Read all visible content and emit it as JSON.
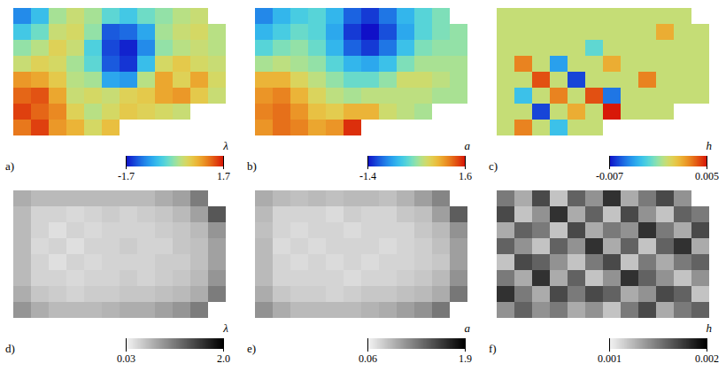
{
  "chart_data": [
    {
      "type": "heatmap",
      "panel": "a)",
      "color": "jet",
      "tick_labels": false,
      "colorbar": {
        "label": "λ",
        "range": [
          -1.7,
          1.7
        ],
        "ticks": [
          -1.7,
          1.7
        ]
      },
      "cells": [
        [
          -1.0,
          -0.6,
          0.1,
          0.3,
          0.1,
          -0.3,
          -0.5,
          -0.2,
          0.0,
          0.2,
          0.3,
          null
        ],
        [
          -0.5,
          -0.2,
          0.3,
          0.4,
          0.0,
          -1.3,
          -1.2,
          -0.8,
          0.1,
          0.3,
          0.4,
          0.2
        ],
        [
          0.0,
          0.2,
          0.5,
          0.3,
          -0.4,
          -1.4,
          -1.6,
          -1.0,
          0.0,
          0.2,
          0.3,
          0.2
        ],
        [
          0.3,
          0.5,
          0.4,
          0.1,
          -0.3,
          -1.3,
          -1.5,
          -0.6,
          0.4,
          0.6,
          0.4,
          0.3
        ],
        [
          1.0,
          0.9,
          0.6,
          0.2,
          0.1,
          -0.8,
          -0.9,
          0.2,
          0.9,
          0.5,
          0.9,
          0.4
        ],
        [
          1.3,
          1.4,
          0.9,
          0.3,
          0.4,
          0.3,
          0.5,
          0.6,
          0.9,
          1.0,
          0.6,
          0.3
        ],
        [
          1.5,
          1.3,
          1.1,
          0.5,
          0.2,
          0.4,
          0.6,
          0.5,
          0.4,
          0.3,
          null,
          null
        ],
        [
          1.2,
          1.5,
          1.0,
          0.8,
          0.4,
          0.7,
          null,
          null,
          null,
          null,
          null,
          null
        ]
      ]
    },
    {
      "type": "heatmap",
      "panel": "b)",
      "color": "jet",
      "tick_labels": false,
      "colorbar": {
        "label": "a",
        "range": [
          -1.4,
          1.6
        ],
        "ticks": [
          -1.4,
          1.6
        ]
      },
      "cells": [
        [
          -0.8,
          -0.5,
          -0.3,
          -0.2,
          -0.5,
          -1.0,
          -1.2,
          -0.9,
          -0.5,
          -0.2,
          0.0,
          null
        ],
        [
          -0.5,
          -0.3,
          -0.1,
          -0.2,
          -0.6,
          -1.2,
          -1.4,
          -1.1,
          -0.6,
          -0.2,
          0.0,
          0.1
        ],
        [
          -0.2,
          0.0,
          0.1,
          -0.1,
          -0.5,
          -1.0,
          -1.2,
          -0.9,
          -0.4,
          0.0,
          0.1,
          0.1
        ],
        [
          0.2,
          0.3,
          0.2,
          0.1,
          -0.2,
          -0.5,
          -0.6,
          -0.4,
          0.0,
          0.2,
          0.2,
          0.2
        ],
        [
          0.8,
          0.8,
          0.5,
          0.3,
          0.1,
          -0.1,
          -0.1,
          0.1,
          0.4,
          0.4,
          0.3,
          0.2
        ],
        [
          1.0,
          1.1,
          0.8,
          0.5,
          0.3,
          0.2,
          0.3,
          0.3,
          0.3,
          0.3,
          0.2,
          0.2
        ],
        [
          1.1,
          1.2,
          1.0,
          0.7,
          0.6,
          0.8,
          0.8,
          0.4,
          0.3,
          0.2,
          null,
          null
        ],
        [
          1.0,
          1.2,
          1.1,
          0.9,
          1.0,
          1.5,
          null,
          null,
          null,
          null,
          null,
          null
        ]
      ]
    },
    {
      "type": "heatmap",
      "panel": "c)",
      "color": "jet",
      "tick_labels": false,
      "colorbar": {
        "label": "h",
        "range": [
          -0.007,
          0.005
        ],
        "ticks": [
          -0.007,
          0.005
        ]
      },
      "cells": [
        [
          0,
          0,
          0,
          0,
          0,
          0,
          0,
          0,
          0,
          0,
          0,
          null
        ],
        [
          0,
          0,
          0,
          0,
          0,
          0,
          0,
          0,
          0,
          0.002,
          0,
          0
        ],
        [
          0,
          0,
          0,
          0,
          0,
          -0.002,
          0,
          0,
          0,
          0,
          0,
          0
        ],
        [
          0,
          0.003,
          0,
          -0.004,
          0,
          0,
          0.002,
          0,
          0,
          0,
          0,
          0
        ],
        [
          0,
          0,
          0.004,
          0,
          -0.006,
          0,
          0,
          0,
          0.003,
          0,
          0,
          0
        ],
        [
          0,
          -0.003,
          0,
          0.003,
          0,
          0.004,
          -0.005,
          0,
          0,
          0,
          0,
          0
        ],
        [
          0,
          0,
          -0.006,
          0,
          0.002,
          0,
          0.005,
          0,
          0,
          0,
          null,
          null
        ],
        [
          0,
          0.003,
          0,
          -0.003,
          0,
          0,
          null,
          null,
          null,
          null,
          null,
          null
        ]
      ]
    },
    {
      "type": "heatmap",
      "panel": "d)",
      "color": "gray",
      "tick_labels": false,
      "colorbar": {
        "label": "λ",
        "range": [
          0.03,
          2.0
        ],
        "ticks": [
          0.03,
          {
            "value": 2.0,
            "label": "2.0"
          }
        ]
      },
      "cells": [
        [
          0.6,
          0.5,
          0.5,
          0.5,
          0.5,
          0.5,
          0.5,
          0.5,
          0.6,
          0.7,
          1.0,
          null
        ],
        [
          0.5,
          0.3,
          0.3,
          0.25,
          0.3,
          0.35,
          0.3,
          0.35,
          0.4,
          0.5,
          0.7,
          1.3
        ],
        [
          0.5,
          0.3,
          0.2,
          0.3,
          0.25,
          0.3,
          0.3,
          0.3,
          0.35,
          0.4,
          0.5,
          0.8
        ],
        [
          0.5,
          0.25,
          0.3,
          0.2,
          0.3,
          0.3,
          0.35,
          0.3,
          0.3,
          0.4,
          0.45,
          0.7
        ],
        [
          0.5,
          0.3,
          0.2,
          0.3,
          0.25,
          0.3,
          0.3,
          0.3,
          0.35,
          0.35,
          0.45,
          0.7
        ],
        [
          0.5,
          0.3,
          0.3,
          0.25,
          0.3,
          0.3,
          0.35,
          0.3,
          0.35,
          0.4,
          0.5,
          0.8
        ],
        [
          0.6,
          0.4,
          0.35,
          0.3,
          0.35,
          0.35,
          0.4,
          0.4,
          0.45,
          0.5,
          0.6,
          1.0
        ],
        [
          0.8,
          0.6,
          0.5,
          0.5,
          0.5,
          0.55,
          0.6,
          0.6,
          0.7,
          0.8,
          1.0,
          null
        ]
      ]
    },
    {
      "type": "heatmap",
      "panel": "e)",
      "color": "gray",
      "tick_labels": false,
      "colorbar": {
        "label": "a",
        "range": [
          0.06,
          1.9
        ],
        "ticks": [
          0.06,
          1.9
        ]
      },
      "cells": [
        [
          0.6,
          0.5,
          0.45,
          0.5,
          0.45,
          0.5,
          0.5,
          0.45,
          0.55,
          0.7,
          0.9,
          null
        ],
        [
          0.5,
          0.3,
          0.3,
          0.3,
          0.25,
          0.35,
          0.3,
          0.3,
          0.4,
          0.45,
          0.7,
          1.2
        ],
        [
          0.45,
          0.3,
          0.25,
          0.3,
          0.3,
          0.25,
          0.3,
          0.3,
          0.3,
          0.4,
          0.5,
          0.8
        ],
        [
          0.5,
          0.25,
          0.3,
          0.25,
          0.3,
          0.3,
          0.3,
          0.25,
          0.3,
          0.35,
          0.45,
          0.7
        ],
        [
          0.5,
          0.3,
          0.25,
          0.3,
          0.25,
          0.3,
          0.25,
          0.3,
          0.3,
          0.35,
          0.4,
          0.7
        ],
        [
          0.5,
          0.3,
          0.3,
          0.3,
          0.3,
          0.25,
          0.3,
          0.3,
          0.35,
          0.4,
          0.5,
          0.8
        ],
        [
          0.6,
          0.4,
          0.35,
          0.35,
          0.3,
          0.35,
          0.4,
          0.4,
          0.45,
          0.5,
          0.6,
          1.0
        ],
        [
          0.8,
          0.6,
          0.5,
          0.5,
          0.5,
          0.5,
          0.55,
          0.6,
          0.7,
          0.8,
          1.0,
          null
        ]
      ]
    },
    {
      "type": "heatmap",
      "panel": "f)",
      "color": "gray",
      "tick_labels": false,
      "colorbar": {
        "label": "h",
        "range": [
          0.001,
          0.002
        ],
        "ticks": [
          0.001,
          0.002
        ]
      },
      "cells": [
        [
          0.0015,
          0.0013,
          0.0017,
          0.0012,
          0.0016,
          0.0014,
          0.0018,
          0.0013,
          0.0015,
          0.0017,
          0.0014,
          null
        ],
        [
          0.0017,
          0.0012,
          0.0014,
          0.0018,
          0.0013,
          0.0016,
          0.0012,
          0.0017,
          0.0014,
          0.0012,
          0.0016,
          0.0015
        ],
        [
          0.0013,
          0.0016,
          0.0015,
          0.0012,
          0.0017,
          0.0013,
          0.0015,
          0.0014,
          0.0018,
          0.0015,
          0.0013,
          0.0017
        ],
        [
          0.0016,
          0.0014,
          0.0012,
          0.0016,
          0.0014,
          0.0018,
          0.0013,
          0.0016,
          0.0012,
          0.0016,
          0.0018,
          0.0013
        ],
        [
          0.0012,
          0.0017,
          0.0016,
          0.0014,
          0.0012,
          0.0015,
          0.0017,
          0.0012,
          0.0015,
          0.0013,
          0.0015,
          0.0016
        ],
        [
          0.0015,
          0.0013,
          0.0018,
          0.0013,
          0.0016,
          0.0012,
          0.0014,
          0.0018,
          0.0016,
          0.0014,
          0.0012,
          0.0014
        ],
        [
          0.0018,
          0.0015,
          0.0013,
          0.0017,
          0.0015,
          0.0017,
          0.0016,
          0.0013,
          0.0014,
          0.0017,
          0.0016,
          0.0012
        ],
        [
          0.0014,
          0.0016,
          0.0014,
          0.0015,
          0.0013,
          0.0014,
          0.0012,
          0.0015,
          0.0017,
          0.0013,
          0.0015,
          0.0016
        ]
      ]
    }
  ]
}
